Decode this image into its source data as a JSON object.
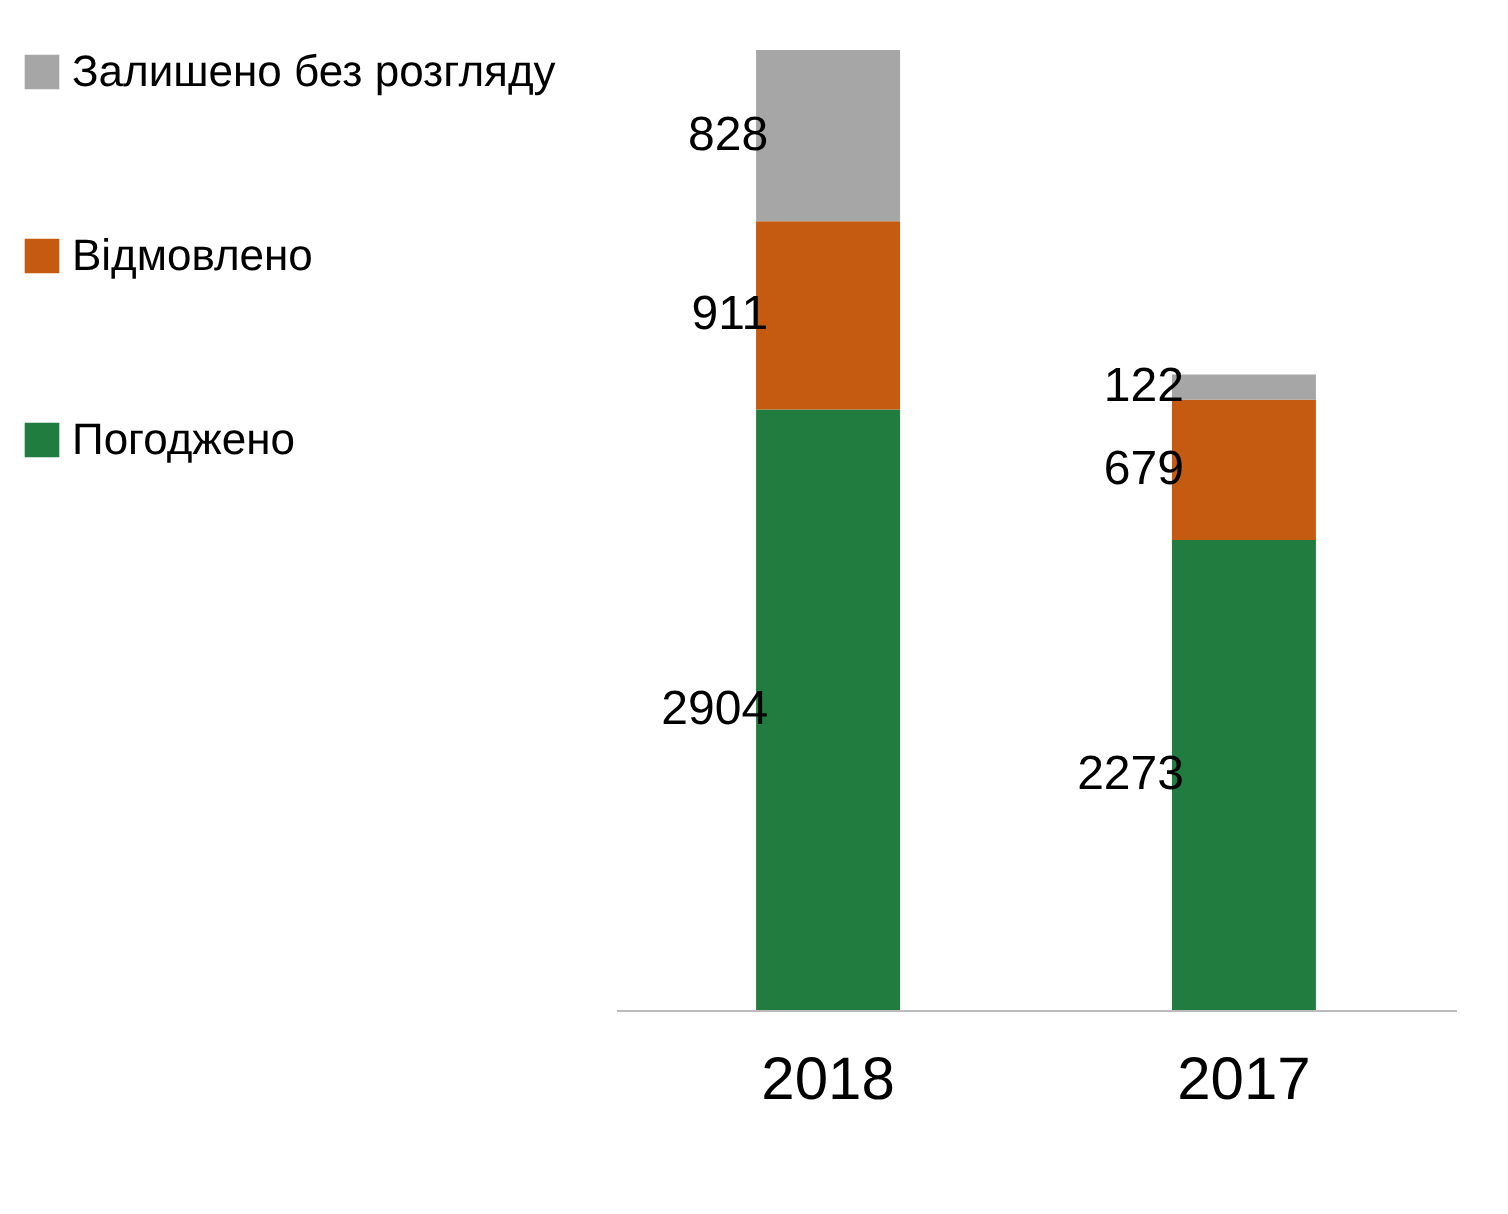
{
  "chart_data": {
    "type": "bar",
    "stacked": true,
    "categories": [
      "2018",
      "2017"
    ],
    "series": [
      {
        "name": "Погоджено",
        "color": "#217d3f",
        "values": [
          2904,
          2273
        ]
      },
      {
        "name": "Відмовлено",
        "color": "#c55a11",
        "values": [
          911,
          679
        ]
      },
      {
        "name": "Залишено без розгляду",
        "color": "#a6a6a6",
        "values": [
          828,
          122
        ]
      }
    ],
    "data_labels": true,
    "legend": "left",
    "grid": false
  }
}
